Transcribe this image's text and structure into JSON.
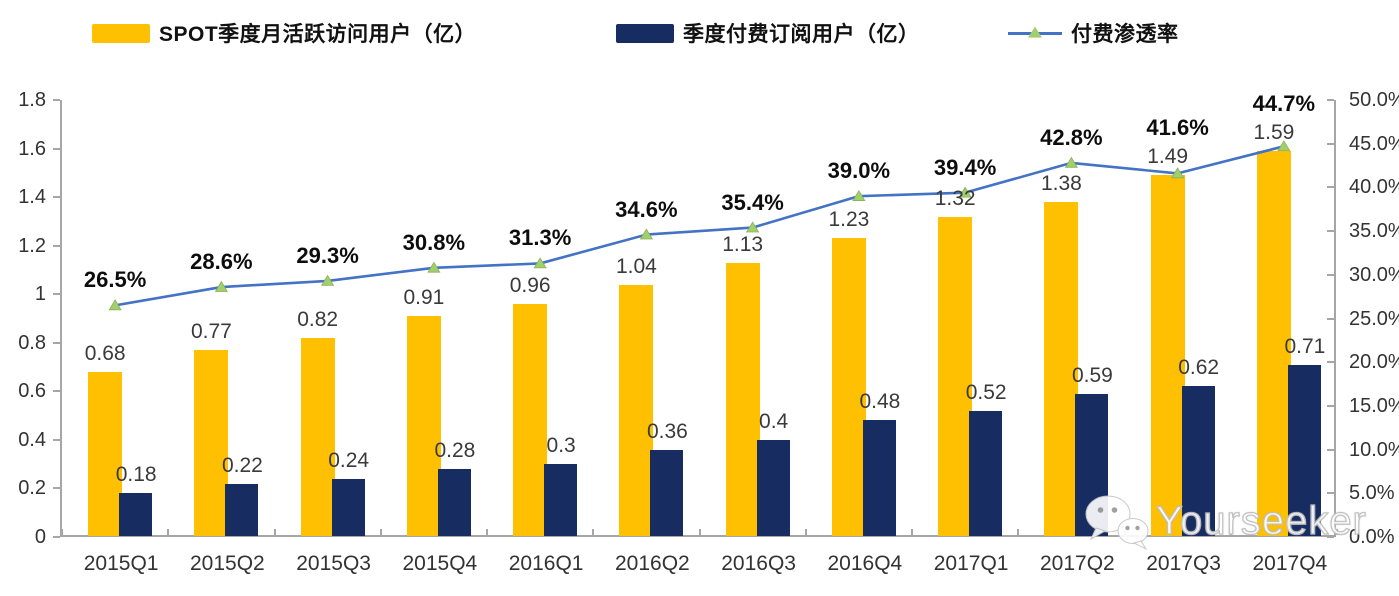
{
  "legend": {
    "items": [
      {
        "label": "SPOT季度月活跃访问用户（亿）",
        "color": "#FFC001",
        "type": "bar-swatch"
      },
      {
        "label": "季度付费订阅用户（亿）",
        "color": "#172D61",
        "type": "bar-swatch"
      },
      {
        "label": "付费渗透率",
        "color": "#4472C4",
        "marker_color": "#A3CE6E",
        "type": "line-swatch"
      }
    ]
  },
  "watermark": {
    "text": "Yourseeker",
    "icon": "wechat-icon"
  },
  "chart_data": {
    "type": "bar",
    "subtype": "grouped-bars-with-line-dual-axis",
    "categories": [
      "2015Q1",
      "2015Q2",
      "2015Q3",
      "2015Q4",
      "2016Q1",
      "2016Q2",
      "2016Q3",
      "2016Q4",
      "2017Q1",
      "2017Q2",
      "2017Q3",
      "2017Q4"
    ],
    "series": [
      {
        "name": "SPOT季度月活跃访问用户（亿）",
        "type": "bar",
        "axis": "left",
        "color": "#FFC001",
        "values": [
          0.68,
          0.77,
          0.82,
          0.91,
          0.96,
          1.04,
          1.13,
          1.23,
          1.32,
          1.38,
          1.49,
          1.59
        ],
        "labels": [
          "0.68",
          "0.77",
          "0.82",
          "0.91",
          "0.96",
          "1.04",
          "1.13",
          "1.23",
          "1.32",
          "1.38",
          "1.49",
          "1.59"
        ]
      },
      {
        "name": "季度付费订阅用户（亿）",
        "type": "bar",
        "axis": "left",
        "color": "#172D61",
        "values": [
          0.18,
          0.22,
          0.24,
          0.28,
          0.3,
          0.36,
          0.4,
          0.48,
          0.52,
          0.59,
          0.62,
          0.71
        ],
        "labels": [
          "0.18",
          "0.22",
          "0.24",
          "0.28",
          "0.3",
          "0.36",
          "0.4",
          "0.48",
          "0.52",
          "0.59",
          "0.62",
          "0.71"
        ]
      },
      {
        "name": "付费渗透率",
        "type": "line",
        "axis": "right",
        "color": "#4472C4",
        "marker": "triangle",
        "marker_color": "#A3CE6E",
        "marker_edge_color": "#86B356",
        "values": [
          26.5,
          28.6,
          29.3,
          30.8,
          31.3,
          34.6,
          35.4,
          39.0,
          39.4,
          42.8,
          41.6,
          44.7
        ],
        "labels": [
          "26.5%",
          "28.6%",
          "29.3%",
          "30.8%",
          "31.3%",
          "34.6%",
          "35.4%",
          "39.0%",
          "39.4%",
          "42.8%",
          "41.6%",
          "44.7%"
        ]
      }
    ],
    "left_axis": {
      "min": 0,
      "max": 1.8,
      "step": 0.2,
      "tick_labels": [
        "1.8",
        "1.6",
        "1.4",
        "1.2",
        "1",
        "0.8",
        "0.6",
        "0.4",
        "0.2",
        "0"
      ]
    },
    "right_axis": {
      "min": 0,
      "max": 50,
      "step": 5,
      "tick_labels": [
        "50.0%",
        "45.0%",
        "40.0%",
        "35.0%",
        "30.0%",
        "25.0%",
        "20.0%",
        "15.0%",
        "10.0%",
        "5.0%",
        "0.0%"
      ]
    },
    "grid": false,
    "legend_position": "top",
    "axis_color": "#A6A6A6"
  }
}
